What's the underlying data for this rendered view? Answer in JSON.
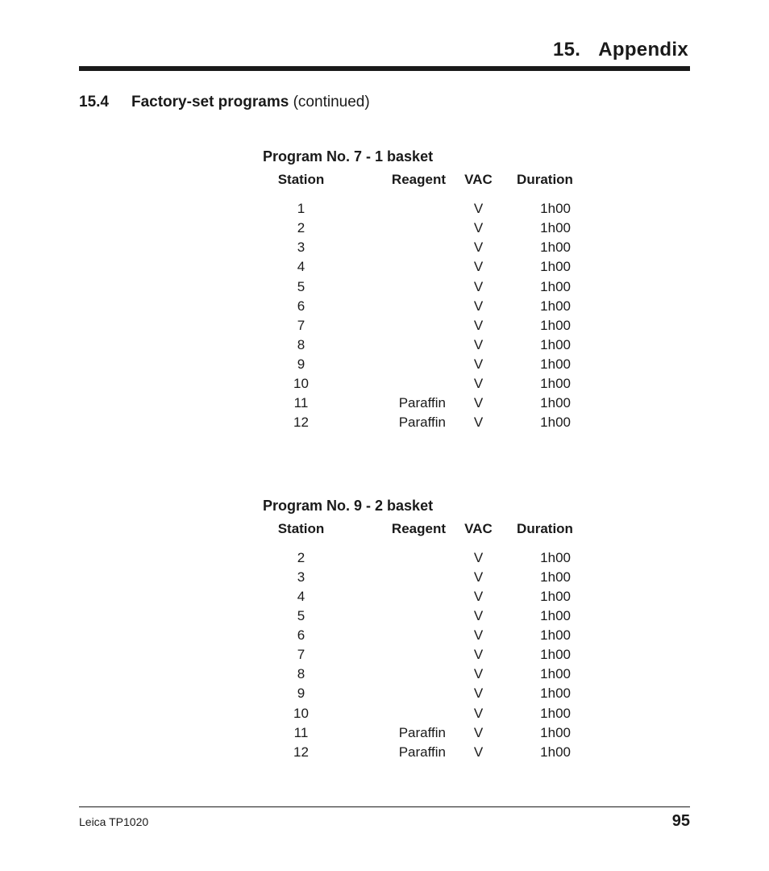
{
  "header": {
    "chapter_number": "15.",
    "chapter_title": "Appendix"
  },
  "section": {
    "number": "15.4",
    "title_bold": "Factory-set programs",
    "title_cont": " (continued)"
  },
  "columns": {
    "station": "Station",
    "reagent": "Reagent",
    "vac": "VAC",
    "duration": "Duration"
  },
  "programs": [
    {
      "title": "Program No. 7 - 1 basket",
      "rows": [
        {
          "station": "1",
          "reagent": "",
          "vac": "V",
          "duration": "1h00"
        },
        {
          "station": "2",
          "reagent": "",
          "vac": "V",
          "duration": "1h00"
        },
        {
          "station": "3",
          "reagent": "",
          "vac": "V",
          "duration": "1h00"
        },
        {
          "station": "4",
          "reagent": "",
          "vac": "V",
          "duration": "1h00"
        },
        {
          "station": "5",
          "reagent": "",
          "vac": "V",
          "duration": "1h00"
        },
        {
          "station": "6",
          "reagent": "",
          "vac": "V",
          "duration": "1h00"
        },
        {
          "station": "7",
          "reagent": "",
          "vac": "V",
          "duration": "1h00"
        },
        {
          "station": "8",
          "reagent": "",
          "vac": "V",
          "duration": "1h00"
        },
        {
          "station": "9",
          "reagent": "",
          "vac": "V",
          "duration": "1h00"
        },
        {
          "station": "10",
          "reagent": "",
          "vac": "V",
          "duration": "1h00"
        },
        {
          "station": "11",
          "reagent": "Paraffin",
          "vac": "V",
          "duration": "1h00"
        },
        {
          "station": "12",
          "reagent": "Paraffin",
          "vac": "V",
          "duration": "1h00"
        }
      ]
    },
    {
      "title": "Program No. 9 - 2 basket",
      "rows": [
        {
          "station": "2",
          "reagent": "",
          "vac": "V",
          "duration": "1h00"
        },
        {
          "station": "3",
          "reagent": "",
          "vac": "V",
          "duration": "1h00"
        },
        {
          "station": "4",
          "reagent": "",
          "vac": "V",
          "duration": "1h00"
        },
        {
          "station": "5",
          "reagent": "",
          "vac": "V",
          "duration": "1h00"
        },
        {
          "station": "6",
          "reagent": "",
          "vac": "V",
          "duration": "1h00"
        },
        {
          "station": "7",
          "reagent": "",
          "vac": "V",
          "duration": "1h00"
        },
        {
          "station": "8",
          "reagent": "",
          "vac": "V",
          "duration": "1h00"
        },
        {
          "station": "9",
          "reagent": "",
          "vac": "V",
          "duration": "1h00"
        },
        {
          "station": "10",
          "reagent": "",
          "vac": "V",
          "duration": "1h00"
        },
        {
          "station": "11",
          "reagent": "Paraffin",
          "vac": "V",
          "duration": "1h00"
        },
        {
          "station": "12",
          "reagent": "Paraffin",
          "vac": "V",
          "duration": "1h00"
        }
      ]
    }
  ],
  "footer": {
    "left": "Leica TP1020",
    "page_number": "95"
  }
}
